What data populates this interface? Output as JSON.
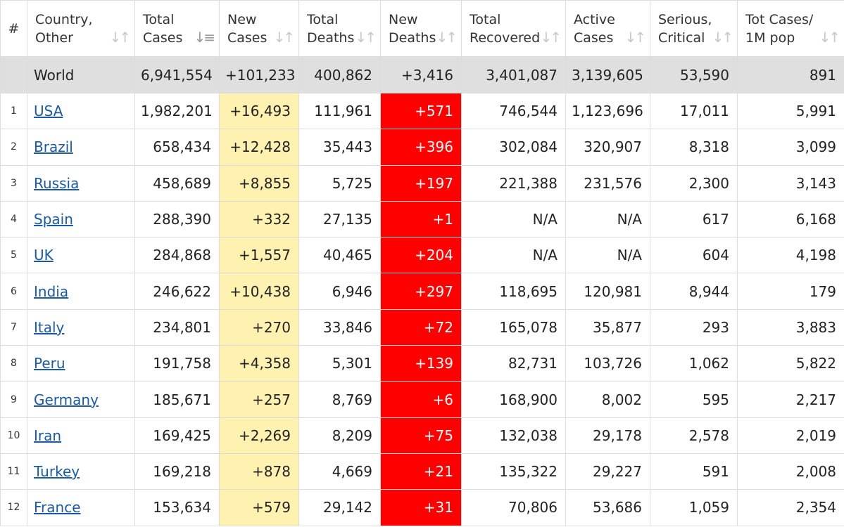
{
  "headers": {
    "num": "#",
    "country": [
      "Country,",
      "Other"
    ],
    "total_cases": [
      "Total",
      "Cases"
    ],
    "new_cases": [
      "New",
      "Cases"
    ],
    "total_deaths": [
      "Total",
      "Deaths"
    ],
    "new_deaths": [
      "New",
      "Deaths"
    ],
    "total_recovered": [
      "Total",
      "Recovered"
    ],
    "active_cases": [
      "Active",
      "Cases"
    ],
    "serious_critical": [
      "Serious,",
      "Critical"
    ],
    "tot_cases_1m": [
      "Tot Cases/",
      "1M pop"
    ]
  },
  "world": {
    "country": "World",
    "total_cases": "6,941,554",
    "new_cases": "+101,233",
    "total_deaths": "400,862",
    "new_deaths": "+3,416",
    "total_recovered": "3,401,087",
    "active_cases": "3,139,605",
    "serious_critical": "53,590",
    "tot_cases_1m": "891"
  },
  "rows": [
    {
      "idx": "1",
      "country": "USA",
      "total_cases": "1,982,201",
      "new_cases": "+16,493",
      "total_deaths": "111,961",
      "new_deaths": "+571",
      "total_recovered": "746,544",
      "active_cases": "1,123,696",
      "serious_critical": "17,011",
      "tot_cases_1m": "5,991"
    },
    {
      "idx": "2",
      "country": "Brazil",
      "total_cases": "658,434",
      "new_cases": "+12,428",
      "total_deaths": "35,443",
      "new_deaths": "+396",
      "total_recovered": "302,084",
      "active_cases": "320,907",
      "serious_critical": "8,318",
      "tot_cases_1m": "3,099"
    },
    {
      "idx": "3",
      "country": "Russia",
      "total_cases": "458,689",
      "new_cases": "+8,855",
      "total_deaths": "5,725",
      "new_deaths": "+197",
      "total_recovered": "221,388",
      "active_cases": "231,576",
      "serious_critical": "2,300",
      "tot_cases_1m": "3,143"
    },
    {
      "idx": "4",
      "country": "Spain",
      "total_cases": "288,390",
      "new_cases": "+332",
      "total_deaths": "27,135",
      "new_deaths": "+1",
      "total_recovered": "N/A",
      "active_cases": "N/A",
      "serious_critical": "617",
      "tot_cases_1m": "6,168"
    },
    {
      "idx": "5",
      "country": "UK",
      "total_cases": "284,868",
      "new_cases": "+1,557",
      "total_deaths": "40,465",
      "new_deaths": "+204",
      "total_recovered": "N/A",
      "active_cases": "N/A",
      "serious_critical": "604",
      "tot_cases_1m": "4,198"
    },
    {
      "idx": "6",
      "country": "India",
      "total_cases": "246,622",
      "new_cases": "+10,438",
      "total_deaths": "6,946",
      "new_deaths": "+297",
      "total_recovered": "118,695",
      "active_cases": "120,981",
      "serious_critical": "8,944",
      "tot_cases_1m": "179"
    },
    {
      "idx": "7",
      "country": "Italy",
      "total_cases": "234,801",
      "new_cases": "+270",
      "total_deaths": "33,846",
      "new_deaths": "+72",
      "total_recovered": "165,078",
      "active_cases": "35,877",
      "serious_critical": "293",
      "tot_cases_1m": "3,883"
    },
    {
      "idx": "8",
      "country": "Peru",
      "total_cases": "191,758",
      "new_cases": "+4,358",
      "total_deaths": "5,301",
      "new_deaths": "+139",
      "total_recovered": "82,731",
      "active_cases": "103,726",
      "serious_critical": "1,062",
      "tot_cases_1m": "5,822"
    },
    {
      "idx": "9",
      "country": "Germany",
      "total_cases": "185,671",
      "new_cases": "+257",
      "total_deaths": "8,769",
      "new_deaths": "+6",
      "total_recovered": "168,900",
      "active_cases": "8,002",
      "serious_critical": "595",
      "tot_cases_1m": "2,217"
    },
    {
      "idx": "10",
      "country": "Iran",
      "total_cases": "169,425",
      "new_cases": "+2,269",
      "total_deaths": "8,209",
      "new_deaths": "+75",
      "total_recovered": "132,038",
      "active_cases": "29,178",
      "serious_critical": "2,578",
      "tot_cases_1m": "2,019"
    },
    {
      "idx": "11",
      "country": "Turkey",
      "total_cases": "169,218",
      "new_cases": "+878",
      "total_deaths": "4,669",
      "new_deaths": "+21",
      "total_recovered": "135,322",
      "active_cases": "29,227",
      "serious_critical": "591",
      "tot_cases_1m": "2,008"
    },
    {
      "idx": "12",
      "country": "France",
      "total_cases": "153,634",
      "new_cases": "+579",
      "total_deaths": "29,142",
      "new_deaths": "+31",
      "total_recovered": "70,806",
      "active_cases": "53,686",
      "serious_critical": "1,059",
      "tot_cases_1m": "2,354"
    }
  ],
  "sort": {
    "column": "total_cases",
    "direction": "descending"
  },
  "colors": {
    "new_cases_bg": "#fff1b0",
    "new_deaths_bg": "#ff0000",
    "world_row_bg": "#dfdfdf",
    "link": "#1a5aa6"
  }
}
